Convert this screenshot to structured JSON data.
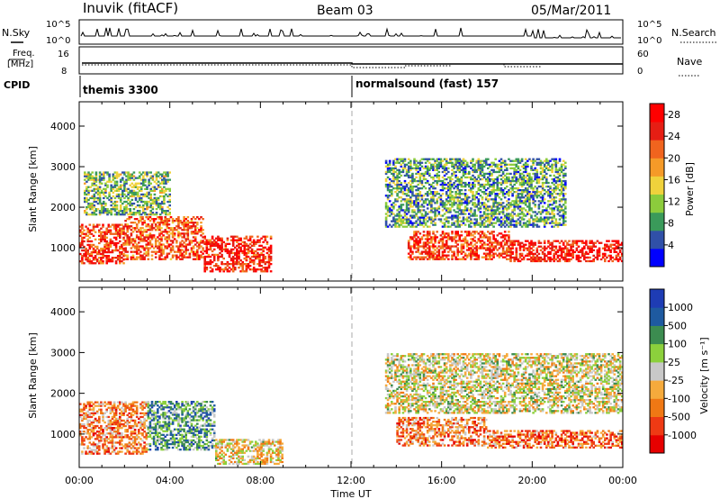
{
  "header": {
    "station": "Inuvik (fitACF)",
    "beam": "Beam 03",
    "date": "05/Mar/2011"
  },
  "nsky_panel": {
    "left_label": "N.Sky",
    "left_ticks": [
      "10^5",
      "10^0"
    ],
    "right_label": "N.Search",
    "right_ticks": [
      "10^5",
      "10^0"
    ]
  },
  "freq_panel": {
    "left_label_1": "Freq.",
    "left_label_2": "[MHz]",
    "left_ticks": [
      "16",
      "8"
    ],
    "right_label": "Nave",
    "right_ticks": [
      "60",
      "0"
    ]
  },
  "cpid_panel": {
    "label": "CPID",
    "modes": [
      {
        "name": "themis 3300",
        "start_hour": 0
      },
      {
        "name": "normalsound (fast) 157",
        "start_hour": 12
      }
    ]
  },
  "colors": {
    "power_scale": [
      "#0000ff",
      "#3050a8",
      "#3a9a5a",
      "#8ccc3c",
      "#f0d23c",
      "#f59a28",
      "#f0641e",
      "#e61e14",
      "#ff0000"
    ],
    "velocity_scale": [
      "#e60000",
      "#ee3a14",
      "#f07814",
      "#f5aa3c",
      "#c8c8c8",
      "#8cd03c",
      "#3c8c50",
      "#1e5aa0",
      "#1e3cb4"
    ],
    "gap_marker": "#c8c8c8"
  },
  "chart_data": [
    {
      "type": "heatmap",
      "title": "",
      "xlabel": "Time UT",
      "ylabel": "Slant Range [km]",
      "x_ticks": [
        "00:00",
        "04:00",
        "08:00",
        "12:00",
        "16:00",
        "20:00",
        "00:00"
      ],
      "x_range_hours": [
        0,
        24
      ],
      "ylim": [
        180,
        4600
      ],
      "y_ticks": [
        1000,
        2000,
        3000,
        4000
      ],
      "colorbar": {
        "label": "Power [dB]",
        "ticks": [
          4,
          8,
          12,
          16,
          20,
          24,
          28
        ],
        "range": [
          0,
          30
        ]
      },
      "echo_regions": [
        {
          "t_start": 0.0,
          "t_end": 2.0,
          "r_low": 600,
          "r_high": 1600,
          "level": 0.8
        },
        {
          "t_start": 2.0,
          "t_end": 5.5,
          "r_low": 700,
          "r_high": 1800,
          "level": 0.75
        },
        {
          "t_start": 5.5,
          "t_end": 8.5,
          "r_low": 400,
          "r_high": 1300,
          "level": 0.85
        },
        {
          "t_start": 0.2,
          "t_end": 4.0,
          "r_low": 1800,
          "r_high": 2900,
          "level": 0.35
        },
        {
          "t_start": 14.5,
          "t_end": 19.0,
          "r_low": 700,
          "r_high": 1400,
          "level": 0.8
        },
        {
          "t_start": 19.0,
          "t_end": 24.0,
          "r_low": 650,
          "r_high": 1200,
          "level": 0.9
        },
        {
          "t_start": 13.5,
          "t_end": 21.5,
          "r_low": 1500,
          "r_high": 3200,
          "level": 0.3
        }
      ]
    },
    {
      "type": "heatmap",
      "title": "",
      "xlabel": "Time UT",
      "ylabel": "Slant Range [km]",
      "x_ticks": [
        "00:00",
        "04:00",
        "08:00",
        "12:00",
        "16:00",
        "20:00",
        "00:00"
      ],
      "x_range_hours": [
        0,
        24
      ],
      "ylim": [
        180,
        4600
      ],
      "y_ticks": [
        1000,
        2000,
        3000,
        4000
      ],
      "colorbar": {
        "label": "Velocity [m s⁻¹]",
        "ticks": [
          1000,
          500,
          100,
          25,
          -25,
          -100,
          -500,
          -1000
        ]
      },
      "echo_regions": [
        {
          "t_start": 0.0,
          "t_end": 3.0,
          "r_low": 500,
          "r_high": 1800,
          "level": 0.3
        },
        {
          "t_start": 3.0,
          "t_end": 6.0,
          "r_low": 600,
          "r_high": 1800,
          "level": 0.7
        },
        {
          "t_start": 6.0,
          "t_end": 9.0,
          "r_low": 250,
          "r_high": 900,
          "level": 0.45
        },
        {
          "t_start": 14.0,
          "t_end": 18.0,
          "r_low": 700,
          "r_high": 1400,
          "level": 0.3
        },
        {
          "t_start": 18.0,
          "t_end": 24.0,
          "r_low": 650,
          "r_high": 1100,
          "level": 0.25
        },
        {
          "t_start": 13.5,
          "t_end": 24.0,
          "r_low": 1500,
          "r_high": 3000,
          "level": 0.5
        }
      ]
    }
  ]
}
